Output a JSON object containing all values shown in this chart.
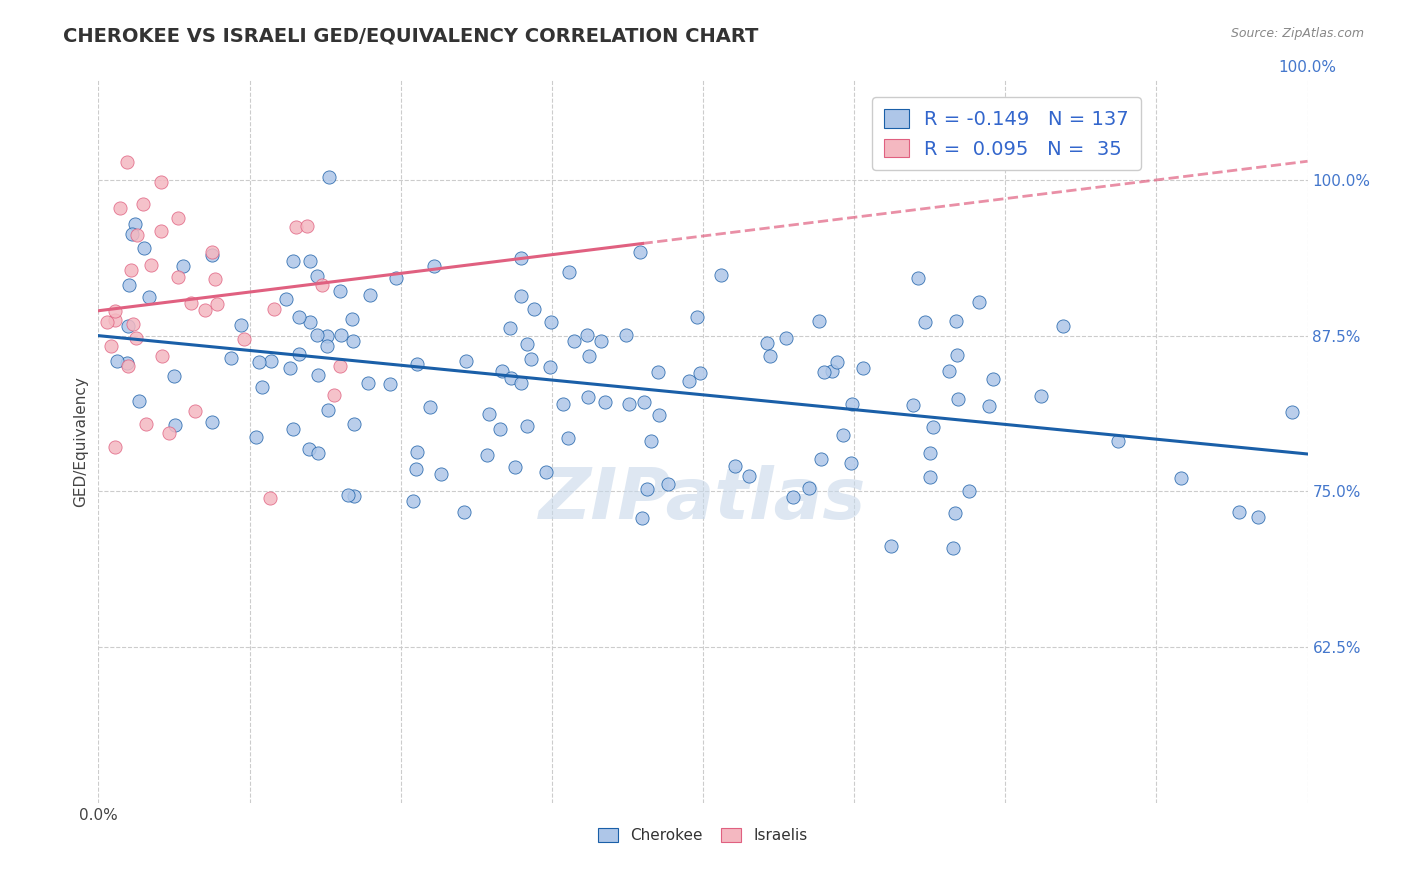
{
  "title": "CHEROKEE VS ISRAELI GED/EQUIVALENCY CORRELATION CHART",
  "source": "Source: ZipAtlas.com",
  "ylabel": "GED/Equivalency",
  "xlim": [
    0.0,
    1.0
  ],
  "ylim": [
    0.5,
    1.08
  ],
  "yticks": [
    0.625,
    0.75,
    0.875,
    1.0
  ],
  "ytick_labels": [
    "62.5%",
    "75.0%",
    "87.5%",
    "100.0%"
  ],
  "xticks": [
    0.0,
    0.125,
    0.25,
    0.375,
    0.5,
    0.625,
    0.75,
    0.875,
    1.0
  ],
  "cherokee_color": "#aec6e8",
  "israeli_color": "#f4b8c1",
  "cherokee_line_color": "#1a5fa8",
  "israeli_line_color": "#e06080",
  "legend_R1": "-0.149",
  "legend_N1": "137",
  "legend_R2": "0.095",
  "legend_N2": "35",
  "watermark": "ZIPatlas",
  "cherokee_label": "Cherokee",
  "israeli_label": "Israelis",
  "cherokee_r": -0.149,
  "cherokee_n": 137,
  "israeli_r": 0.095,
  "israeli_n": 35,
  "cherokee_intercept": 0.875,
  "cherokee_slope": -0.095,
  "israeli_intercept": 0.895,
  "israeli_slope": 0.12,
  "background_color": "#ffffff",
  "plot_bg_color": "#ffffff",
  "grid_color": "#cccccc",
  "title_fontsize": 14,
  "axis_label_fontsize": 11,
  "tick_fontsize": 11,
  "legend_fontsize": 14,
  "watermark_color": "#c8d8ea",
  "watermark_fontsize": 52
}
